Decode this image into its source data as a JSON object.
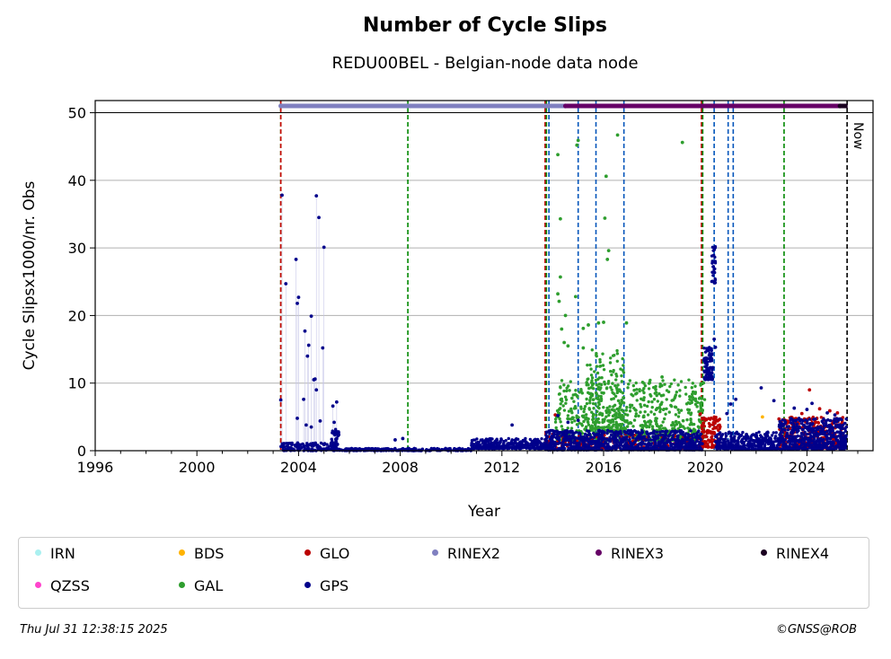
{
  "title": "Number of Cycle Slips",
  "subtitle": "REDU00BEL - Belgian-node data node",
  "footer": {
    "timestamp": "Thu Jul 31 12:38:15 2025",
    "credit": "©GNSS@ROB"
  },
  "chart_data": {
    "type": "scatter",
    "xlabel": "Year",
    "ylabel": "Cycle Slipsx1000/nr. Obs",
    "xlim": [
      1996,
      2026.6
    ],
    "ylim": [
      0,
      51.8
    ],
    "xticks": [
      "1996",
      "2000",
      "2004",
      "2008",
      "2012",
      "2016",
      "2020",
      "2024"
    ],
    "xtick_values": [
      1996,
      2000,
      2004,
      2008,
      2012,
      2016,
      2020,
      2024
    ],
    "yticks": [
      "0",
      "10",
      "20",
      "30",
      "40",
      "50"
    ],
    "ytick_values": [
      0,
      10,
      20,
      30,
      40,
      50
    ],
    "grid": "horizontal",
    "now_label": "Now",
    "now_year": 2025.58,
    "colors": {
      "IRN": "#aaf0f0",
      "QZSS": "#ff44cc",
      "BDS": "#ffb300",
      "GAL": "#2e9e2e",
      "GLO": "#bb0000",
      "GPS": "#00008b",
      "RINEX2": "#8080c0",
      "RINEX3": "#660066",
      "RINEX4": "#1a0020"
    },
    "legend": [
      "IRN",
      "QZSS",
      "BDS",
      "GAL",
      "GLO",
      "GPS",
      "RINEX2",
      "RINEX3",
      "RINEX4"
    ],
    "rinex_bars": [
      {
        "name": "RINEX2",
        "start": 2003.3,
        "end": 2014.5,
        "value": 51
      },
      {
        "name": "RINEX3",
        "start": 2014.5,
        "end": 2025.5,
        "value": 51
      },
      {
        "name": "RINEX4",
        "start": 2025.3,
        "end": 2025.6,
        "value": 51
      }
    ],
    "event_lines": [
      {
        "x": 2003.3,
        "color": "#008800"
      },
      {
        "x": 2003.3,
        "color": "#cc0000"
      },
      {
        "x": 2008.3,
        "color": "#008800"
      },
      {
        "x": 2013.7,
        "color": "#cc0000"
      },
      {
        "x": 2013.75,
        "color": "#008800"
      },
      {
        "x": 2013.85,
        "color": "#0055bb"
      },
      {
        "x": 2015.0,
        "color": "#0055bb"
      },
      {
        "x": 2015.7,
        "color": "#0055bb"
      },
      {
        "x": 2016.8,
        "color": "#0055bb"
      },
      {
        "x": 2019.85,
        "color": "#cc0000"
      },
      {
        "x": 2019.9,
        "color": "#008800"
      },
      {
        "x": 2020.35,
        "color": "#0055bb"
      },
      {
        "x": 2020.9,
        "color": "#0055bb"
      },
      {
        "x": 2021.1,
        "color": "#0055bb"
      },
      {
        "x": 2023.1,
        "color": "#008800"
      }
    ],
    "series": [
      {
        "name": "GPS",
        "outliers": [
          [
            2003.3,
            7.5
          ],
          [
            2003.35,
            37.8
          ],
          [
            2003.5,
            24.7
          ],
          [
            2003.9,
            28.3
          ],
          [
            2004.0,
            22.7
          ],
          [
            2003.95,
            21.8
          ],
          [
            2004.25,
            17.7
          ],
          [
            2004.35,
            14.0
          ],
          [
            2004.4,
            15.6
          ],
          [
            2004.5,
            19.9
          ],
          [
            2004.6,
            10.5
          ],
          [
            2004.7,
            9.0
          ],
          [
            2004.65,
            10.6
          ],
          [
            2004.7,
            37.7
          ],
          [
            2004.8,
            34.5
          ],
          [
            2005.0,
            30.1
          ],
          [
            2004.95,
            15.2
          ],
          [
            2003.95,
            4.8
          ],
          [
            2004.3,
            3.8
          ],
          [
            2004.5,
            3.5
          ],
          [
            2005.35,
            6.6
          ],
          [
            2005.5,
            7.2
          ],
          [
            2005.4,
            4.2
          ],
          [
            2004.85,
            4.4
          ],
          [
            2004.2,
            7.6
          ],
          [
            2005.45,
            2.8
          ],
          [
            2005.5,
            1.8
          ],
          [
            2005.55,
            2.2
          ],
          [
            2007.8,
            1.6
          ],
          [
            2008.1,
            1.8
          ],
          [
            2012.4,
            3.8
          ],
          [
            2014.2,
            5.2
          ],
          [
            2015.0,
            4.5
          ],
          [
            2014.6,
            4.2
          ],
          [
            2020.35,
            16.5
          ],
          [
            2020.4,
            15.3
          ],
          [
            2020.85,
            5.5
          ],
          [
            2021.0,
            6.9
          ],
          [
            2021.2,
            7.6
          ],
          [
            2022.2,
            9.3
          ],
          [
            2022.7,
            7.4
          ],
          [
            2023.5,
            6.3
          ],
          [
            2024.0,
            6.1
          ],
          [
            2024.2,
            7.0
          ],
          [
            2024.8,
            5.6
          ],
          [
            2025.1,
            5.3
          ],
          [
            2025.3,
            4.7
          ]
        ],
        "clusters": [
          {
            "start": 2019.95,
            "end": 2020.3,
            "min": 10.5,
            "max": 15.3,
            "count": 90
          },
          {
            "start": 2020.25,
            "end": 2020.4,
            "min": 24.8,
            "max": 30.2,
            "count": 30
          }
        ]
      },
      {
        "name": "GAL",
        "outliers": [
          [
            2014.2,
            43.8
          ],
          [
            2014.3,
            34.3
          ],
          [
            2014.3,
            25.7
          ],
          [
            2014.2,
            23.2
          ],
          [
            2014.25,
            22.1
          ],
          [
            2014.5,
            20.0
          ],
          [
            2014.35,
            18.0
          ],
          [
            2014.45,
            16.0
          ],
          [
            2014.6,
            15.5
          ],
          [
            2015.0,
            45.9
          ],
          [
            2014.95,
            45.2
          ],
          [
            2014.9,
            22.8
          ],
          [
            2015.2,
            18.1
          ],
          [
            2015.4,
            18.6
          ],
          [
            2015.2,
            15.2
          ],
          [
            2016.1,
            40.6
          ],
          [
            2016.05,
            34.4
          ],
          [
            2016.2,
            29.6
          ],
          [
            2016.15,
            28.3
          ],
          [
            2016.55,
            46.7
          ],
          [
            2016.9,
            18.9
          ],
          [
            2015.8,
            18.9
          ],
          [
            2016.0,
            19.0
          ],
          [
            2019.1,
            45.6
          ],
          [
            2018.3,
            10.9
          ]
        ],
        "clusters": [
          {
            "start": 2014.1,
            "end": 2020.0,
            "min": 1.5,
            "max": 10.5,
            "count": 700
          },
          {
            "start": 2015.3,
            "end": 2016.8,
            "min": 3.0,
            "max": 15.0,
            "count": 160
          }
        ]
      },
      {
        "name": "GLO",
        "outliers": [
          [
            2014.1,
            5.3
          ],
          [
            2019.8,
            5.4
          ],
          [
            2020.0,
            4.7
          ],
          [
            2022.9,
            4.7
          ],
          [
            2023.1,
            4.6
          ],
          [
            2023.8,
            5.5
          ],
          [
            2024.1,
            9.0
          ],
          [
            2024.5,
            6.2
          ],
          [
            2024.9,
            5.9
          ],
          [
            2025.2,
            5.6
          ]
        ],
        "clusters": [
          {
            "start": 2013.7,
            "end": 2019.85,
            "min": 0.3,
            "max": 2.5,
            "count": 180
          },
          {
            "start": 2019.85,
            "end": 2020.6,
            "min": 0.5,
            "max": 5.0,
            "count": 120
          },
          {
            "start": 2022.9,
            "end": 2025.5,
            "min": 0.3,
            "max": 5.0,
            "count": 320
          }
        ]
      },
      {
        "name": "BDS",
        "outliers": [
          [
            2022.25,
            5.0
          ]
        ],
        "clusters": []
      }
    ],
    "gps_baseline": [
      {
        "start": 2003.3,
        "end": 2005.6,
        "min": 0.0,
        "max": 1.2,
        "count": 140
      },
      {
        "start": 2005.3,
        "end": 2005.6,
        "min": 0.0,
        "max": 3.2,
        "count": 40
      },
      {
        "start": 2005.6,
        "end": 2010.8,
        "min": 0.0,
        "max": 0.35,
        "count": 260
      },
      {
        "start": 2010.8,
        "end": 2013.7,
        "min": 0.3,
        "max": 1.8,
        "count": 320
      },
      {
        "start": 2013.7,
        "end": 2019.9,
        "min": 0.1,
        "max": 3.0,
        "count": 900
      },
      {
        "start": 2020.4,
        "end": 2022.9,
        "min": 0.2,
        "max": 2.8,
        "count": 360
      },
      {
        "start": 2022.9,
        "end": 2025.55,
        "min": 0.2,
        "max": 4.8,
        "count": 520
      }
    ]
  }
}
